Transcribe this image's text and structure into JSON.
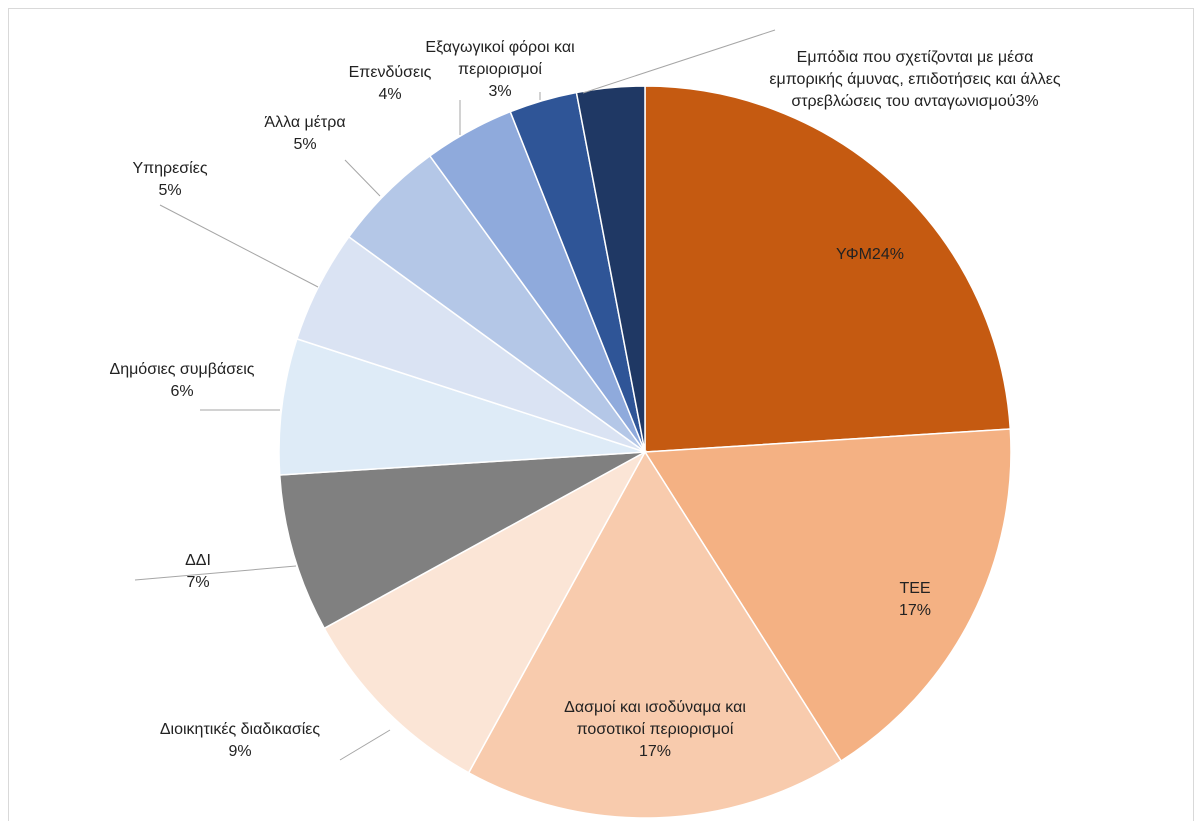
{
  "chart_data": {
    "type": "pie",
    "categories": [
      "ΥΦΜ",
      "ΤΕΕ",
      "Δασμοί και ισοδύναμα και ποσοτικοί περιορισμοί",
      "Διοικητικές διαδικασίες",
      "ΔΔΙ",
      "Δημόσιες συμβάσεις",
      "Υπηρεσίες",
      "Άλλα μέτρα",
      "Επενδύσεις",
      "Εξαγωγικοί φόροι και περιορισμοί",
      "Εμπόδια που σχετίζονται με μέσα εμπορικής άμυνας, επιδοτήσεις και άλλες στρεβλώσεις του ανταγωνισμού"
    ],
    "values": [
      24,
      17,
      17,
      9,
      7,
      6,
      5,
      5,
      4,
      3,
      3
    ],
    "value_labels": [
      "24%",
      "17%",
      "17%",
      "9%",
      "7%",
      "6%",
      "5%",
      "5%",
      "4%",
      "3%",
      "3%"
    ],
    "colors": [
      "#c55a11",
      "#f4b183",
      "#f8cbad",
      "#fbe5d6",
      "#808080",
      "#deebf7",
      "#dae3f3",
      "#b4c7e7",
      "#8faadc",
      "#2f5597",
      "#1f3864"
    ]
  }
}
